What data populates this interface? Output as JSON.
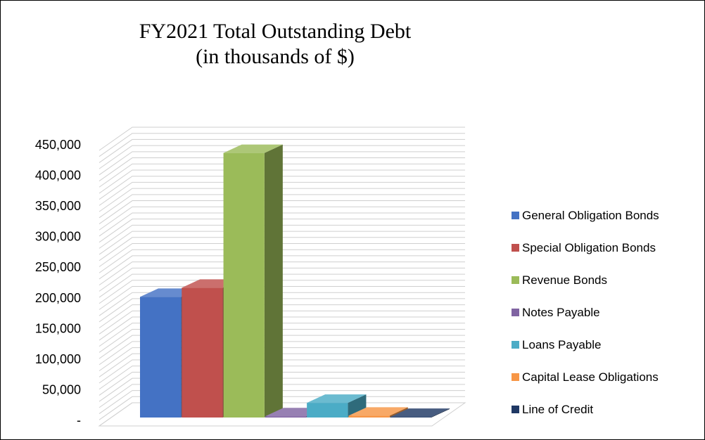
{
  "chart_data": {
    "type": "bar",
    "title": "FY2021 Total Outstanding Debt",
    "subtitle": "(in thousands of $)",
    "xlabel": "",
    "ylabel": "",
    "ylim": [
      0,
      450000
    ],
    "y_ticks": [
      "-",
      "50,000",
      "100,000",
      "150,000",
      "200,000",
      "250,000",
      "300,000",
      "350,000",
      "400,000",
      "450,000"
    ],
    "grid": true,
    "legend_position": "right",
    "categories": [
      ""
    ],
    "series": [
      {
        "name": "General Obligation Bonds",
        "values": [
          197000
        ],
        "color": "#4472C4"
      },
      {
        "name": "Special Obligation Bonds",
        "values": [
          212000
        ],
        "color": "#C0504D"
      },
      {
        "name": "Revenue Bonds",
        "values": [
          432000
        ],
        "color": "#9BBB59"
      },
      {
        "name": "Notes Payable",
        "values": [
          2000
        ],
        "color": "#8064A2"
      },
      {
        "name": "Loans Payable",
        "values": [
          24000
        ],
        "color": "#4BACC6"
      },
      {
        "name": "Capital Lease Obligations",
        "values": [
          3000
        ],
        "color": "#F79646"
      },
      {
        "name": "Line of Credit",
        "values": [
          1000
        ],
        "color": "#1F3864"
      }
    ]
  }
}
